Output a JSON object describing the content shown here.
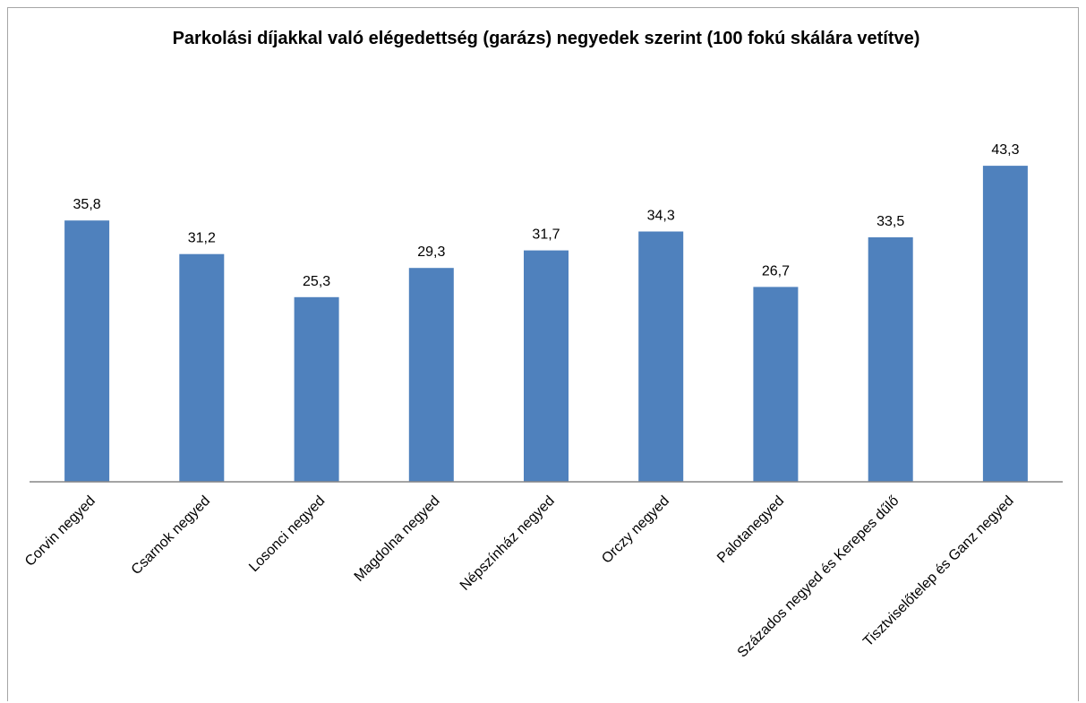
{
  "chart_data": {
    "type": "bar",
    "title": "Parkolási díjakkal való elégedettség (garázs) negyedek szerint (100 fokú skálára vetítve)",
    "xlabel": "",
    "ylabel": "",
    "categories": [
      "Corvin negyed",
      "Csarnok negyed",
      "Losonci negyed",
      "Magdolna negyed",
      "Népszínház negyed",
      "Orczy negyed",
      "Palotanegyed",
      "Százados negyed és Kerepes dűlő",
      "Tisztviselőtelep és Ganz negyed"
    ],
    "values": [
      35.8,
      31.2,
      25.3,
      29.3,
      31.7,
      34.3,
      26.7,
      33.5,
      43.3
    ],
    "value_labels": [
      "35,8",
      "31,2",
      "25,3",
      "29,3",
      "31,7",
      "34,3",
      "26,7",
      "33,5",
      "43,3"
    ],
    "ylim": [
      0,
      50
    ],
    "grid": false,
    "legend": "none",
    "bar_color": "#4f81bd"
  }
}
